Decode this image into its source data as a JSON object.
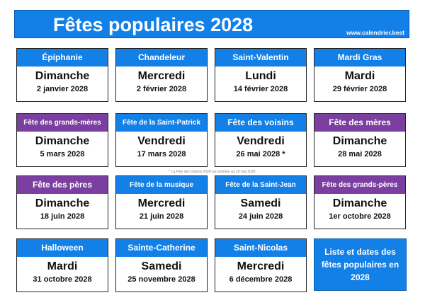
{
  "header": {
    "title": "Fêtes populaires 2028",
    "website": "www.calendrier.best"
  },
  "cards": [
    {
      "name": "Épiphanie",
      "day": "Dimanche",
      "date": "2 janvier 2028",
      "color": "blue"
    },
    {
      "name": "Chandeleur",
      "day": "Mercredi",
      "date": "2 février 2028",
      "color": "blue"
    },
    {
      "name": "Saint-Valentin",
      "day": "Lundi",
      "date": "14 février 2028",
      "color": "blue"
    },
    {
      "name": "Mardi Gras",
      "day": "Mardi",
      "date": "29 février 2028",
      "color": "blue"
    },
    {
      "name": "Fête des grands-mères",
      "day": "Dimanche",
      "date": "5 mars 2028",
      "color": "purple"
    },
    {
      "name": "Fête de la Saint-Patrick",
      "day": "Vendredi",
      "date": "17 mars 2028",
      "color": "blue"
    },
    {
      "name": "Fête des voisins",
      "day": "Vendredi",
      "date": "26 mai 2028 *",
      "color": "blue"
    },
    {
      "name": "Fête des mères",
      "day": "Dimanche",
      "date": "28 mai 2028",
      "color": "purple"
    },
    {
      "name": "Fête des pères",
      "day": "Dimanche",
      "date": "18 juin 2028",
      "color": "purple"
    },
    {
      "name": "Fête de la musique",
      "day": "Mercredi",
      "date": "21 juin 2028",
      "color": "blue"
    },
    {
      "name": "Fête de la Saint-Jean",
      "day": "Samedi",
      "date": "24 juin 2028",
      "color": "blue"
    },
    {
      "name": "Fête des grands-pères",
      "day": "Dimanche",
      "date": "1er octobre 2028",
      "color": "purple"
    },
    {
      "name": "Halloween",
      "day": "Mardi",
      "date": "31 octobre 2028",
      "color": "blue"
    },
    {
      "name": "Sainte-Catherine",
      "day": "Samedi",
      "date": "25 novembre 2028",
      "color": "blue"
    },
    {
      "name": "Saint-Nicolas",
      "day": "Mercredi",
      "date": "6 décembre 2028",
      "color": "blue"
    }
  ],
  "footnote": "* La Fête des Voisins 2028 est estimée au 26 mai 2028.",
  "infobox": "Liste et dates des fêtes populaires en 2028",
  "colors": {
    "blue": "#1380e8",
    "purple": "#7a3fa0"
  }
}
